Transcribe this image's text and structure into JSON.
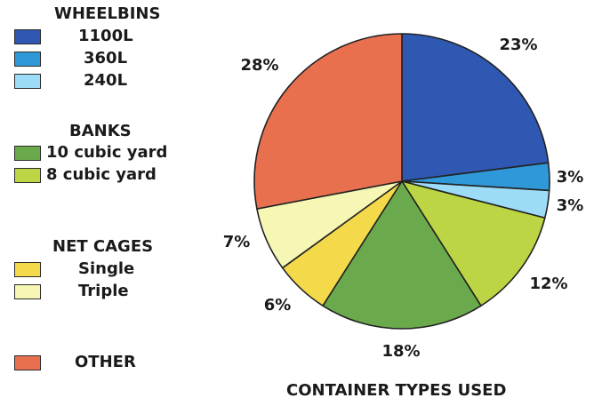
{
  "chart_data": {
    "type": "pie",
    "title": "CONTAINER TYPES USED",
    "legend_position": "left",
    "groups": [
      {
        "title": "WHEELBINS",
        "items": [
          {
            "label": "1100L",
            "color": "#2f58b3"
          },
          {
            "label": "360L",
            "color": "#2e98d8"
          },
          {
            "label": "240L",
            "color": "#9cdcf6"
          }
        ]
      },
      {
        "title": "BANKS",
        "items": [
          {
            "label": "10 cubic yard",
            "color": "#6aaa4c"
          },
          {
            "label": "8 cubic yard",
            "color": "#bcd544"
          }
        ]
      },
      {
        "title": "NET CAGES",
        "items": [
          {
            "label": "Single",
            "color": "#f4d94a"
          },
          {
            "label": "Triple",
            "color": "#f6f7b4"
          }
        ]
      },
      {
        "title": "",
        "items": [
          {
            "label": "OTHER",
            "color": "#e8704f"
          }
        ]
      }
    ],
    "slices": [
      {
        "name": "1100L",
        "value": 23,
        "label": "23%",
        "color": "#2f58b3"
      },
      {
        "name": "360L",
        "value": 3,
        "label": "3%",
        "color": "#2e98d8"
      },
      {
        "name": "240L",
        "value": 3,
        "label": "3%",
        "color": "#9cdcf6"
      },
      {
        "name": "8 cubic yard",
        "value": 12,
        "label": "12%",
        "color": "#bcd544"
      },
      {
        "name": "10 cubic yard",
        "value": 18,
        "label": "18%",
        "color": "#6aaa4c"
      },
      {
        "name": "Single",
        "value": 6,
        "label": "6%",
        "color": "#f4d94a"
      },
      {
        "name": "Triple",
        "value": 7,
        "label": "7%",
        "color": "#f6f7b4"
      },
      {
        "name": "OTHER",
        "value": 28,
        "label": "28%",
        "color": "#e8704f"
      }
    ]
  }
}
